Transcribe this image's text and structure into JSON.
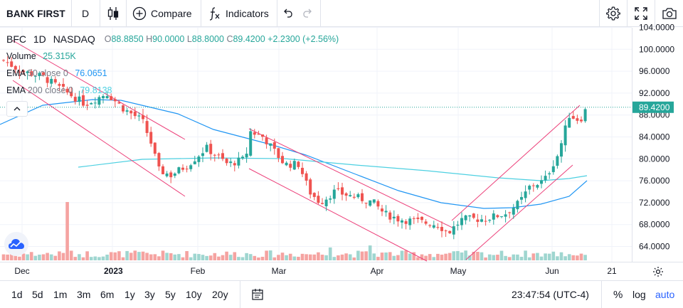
{
  "toolbar": {
    "symbol": "BANK FIRST",
    "interval": "D",
    "compare_label": "Compare",
    "indicators_label": "Indicators",
    "icons": [
      "candles-icon",
      "plus-circle-icon",
      "fx-icon",
      "undo-icon",
      "redo-icon",
      "gear-icon",
      "fullscreen-icon",
      "camera-icon"
    ]
  },
  "legend": {
    "ticker": "BFC",
    "interval": "1D",
    "exchange": "NASDAQ",
    "open_label": "O",
    "open": "88.8850",
    "high_label": "H",
    "high": "90.0000",
    "low_label": "L",
    "low": "88.8000",
    "close_label": "C",
    "close": "89.4200",
    "change": "+2.2300 (+2.56%)",
    "volume_label": "Volume",
    "volume": "25.315K",
    "ema50_label": "EMA",
    "ema50_params": "50 close 0",
    "ema50_value": "76.0651",
    "ema200_label": "EMA",
    "ema200_params": "200 close 0",
    "ema200_value": "79.8138"
  },
  "colors": {
    "up": "#26a69a",
    "down": "#ef5350",
    "ema50": "#2196f3",
    "ema200": "#4dd0e1",
    "trendline": "#ec407a",
    "price_label": "#26a69a",
    "accent": "#2962ff"
  },
  "bottombar": {
    "ranges": [
      "1d",
      "5d",
      "1m",
      "3m",
      "6m",
      "1y",
      "3y",
      "5y",
      "10y",
      "20y"
    ],
    "clock": "23:47:54 (UTC-4)",
    "percent_label": "%",
    "log_label": "log",
    "auto_label": "auto"
  },
  "chart_data": {
    "type": "candlestick",
    "title": "BFC 1D NASDAQ",
    "y_ticks": [
      "104.0000",
      "100.0000",
      "96.0000",
      "92.0000",
      "88.0000",
      "84.0000",
      "80.0000",
      "76.0000",
      "72.0000",
      "68.0000",
      "64.0000"
    ],
    "x_ticks": [
      "Dec",
      "2023",
      "Feb",
      "Mar",
      "Apr",
      "May",
      "Jun",
      "21"
    ],
    "last_price_label": "89.4200",
    "ylim": [
      61,
      105
    ],
    "series": [
      {
        "name": "EMA 50 close 0",
        "points": [
          [
            0,
            175
          ],
          [
            60,
            148
          ],
          [
            130,
            140
          ],
          [
            170,
            141
          ],
          [
            250,
            160
          ],
          [
            300,
            182
          ],
          [
            380,
            203
          ],
          [
            430,
            218
          ],
          [
            500,
            245
          ],
          [
            560,
            268
          ],
          [
            620,
            285
          ],
          [
            680,
            293
          ],
          [
            720,
            292
          ],
          [
            760,
            287
          ],
          [
            800,
            276
          ],
          [
            825,
            254
          ]
        ]
      },
      {
        "name": "EMA 200 close 0",
        "points": [
          [
            110,
            235
          ],
          [
            200,
            224
          ],
          [
            300,
            222
          ],
          [
            400,
            223
          ],
          [
            500,
            232
          ],
          [
            600,
            240
          ],
          [
            700,
            250
          ],
          [
            760,
            254
          ],
          [
            800,
            251
          ],
          [
            825,
            247
          ]
        ]
      }
    ],
    "trendlines": [
      [
        [
          18,
          57
        ],
        [
          260,
          196
        ]
      ],
      [
        [
          18,
          113
        ],
        [
          260,
          276
        ]
      ],
      [
        [
          350,
          181
        ],
        [
          640,
          322
        ]
      ],
      [
        [
          350,
          237
        ],
        [
          600,
          367
        ]
      ],
      [
        [
          635,
          310
        ],
        [
          815,
          148
        ]
      ],
      [
        [
          655,
          365
        ],
        [
          805,
          232
        ]
      ]
    ],
    "volume_max": 100
  }
}
